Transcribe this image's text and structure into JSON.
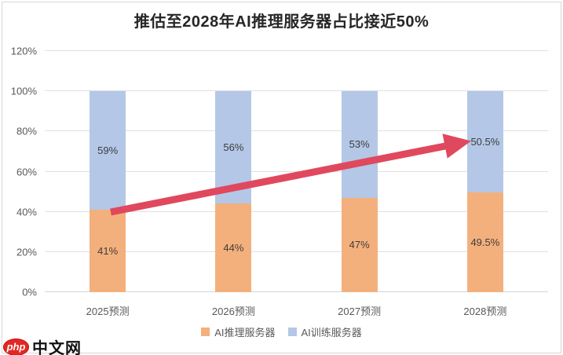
{
  "title": "推估至2028年AI推理服务器占比接近50%",
  "chart_data": {
    "type": "bar",
    "stacked": true,
    "title": "推估至2028年AI推理服务器占比接近50%",
    "categories": [
      "2025预测",
      "2026预测",
      "2027预测",
      "2028预测"
    ],
    "series": [
      {
        "name": "AI推理服务器",
        "color": "#f4b07c",
        "values": [
          41,
          44,
          47,
          49.5
        ],
        "labels": [
          "41%",
          "44%",
          "47%",
          "49.5%"
        ]
      },
      {
        "name": "AI训练服务器",
        "color": "#b4c7e7",
        "values": [
          59,
          56,
          53,
          50.5
        ],
        "labels": [
          "59%",
          "56%",
          "53%",
          "50.5%"
        ]
      }
    ],
    "y_ticks": [
      {
        "value": 0,
        "label": "0%"
      },
      {
        "value": 20,
        "label": "20%"
      },
      {
        "value": 40,
        "label": "40%"
      },
      {
        "value": 60,
        "label": "60%"
      },
      {
        "value": 80,
        "label": "80%"
      },
      {
        "value": 100,
        "label": "100%"
      },
      {
        "value": 120,
        "label": "120%"
      }
    ],
    "ylim": [
      0,
      120
    ],
    "grid": true,
    "legend_position": "bottom",
    "annotation": {
      "type": "trend-arrow",
      "color": "#e0485e",
      "from_category": "2025预测",
      "to_category": "2028预测"
    }
  },
  "legend": {
    "items": [
      {
        "label": "AI推理服务器",
        "color": "#f4b07c"
      },
      {
        "label": "AI训练服务器",
        "color": "#b4c7e7"
      }
    ]
  },
  "watermark": {
    "badge": "php",
    "text": "中文网",
    "badge_color": "#e32722"
  }
}
